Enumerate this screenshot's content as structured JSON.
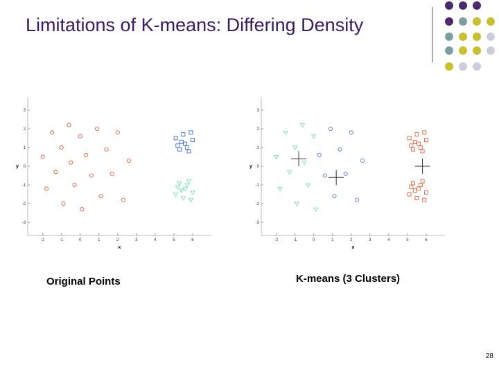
{
  "title": "Limitations of K-means: Differing Density",
  "chart_data": [
    {
      "type": "scatter",
      "x_label": "x",
      "y_label": "y",
      "xlim": [
        -2.8,
        7
      ],
      "ylim": [
        -3.7,
        3.7
      ],
      "xticks": [
        -2,
        -1,
        0,
        1,
        2,
        3,
        4,
        5,
        6
      ],
      "yticks": [
        -3,
        -2,
        -1,
        0,
        1,
        2,
        3
      ],
      "series": [
        {
          "color": "#e0603a",
          "marker": "circle",
          "x": [
            -2,
            -1.8,
            -1.5,
            -1.3,
            -1,
            -0.9,
            -0.6,
            -0.5,
            -0.3,
            0,
            0.1,
            0.3,
            0.6,
            0.9,
            1.1,
            1.4,
            1.7,
            2,
            2.3,
            2.6
          ],
          "values": [
            0.5,
            -1.2,
            1.8,
            -0.3,
            1,
            -2,
            2.2,
            0.2,
            -1,
            1.6,
            -2.3,
            0.6,
            -0.5,
            2,
            -1.6,
            0.9,
            -0.4,
            1.8,
            -1.8,
            0.3
          ]
        },
        {
          "color": "#3a6ad0",
          "marker": "square",
          "x": [
            5.1,
            5.3,
            5.5,
            5.6,
            5.8,
            6,
            5.4,
            5.9,
            5.2,
            5.7
          ],
          "values": [
            1.5,
            0.9,
            1.7,
            1.2,
            0.8,
            1.4,
            1.3,
            1.8,
            1.1,
            1.0
          ]
        },
        {
          "color": "#7ee0b0",
          "marker": "triangle",
          "x": [
            5.1,
            5.3,
            5.5,
            5.6,
            5.8,
            6,
            5.4,
            5.9,
            5.2,
            5.7
          ],
          "values": [
            -1.5,
            -0.9,
            -1.7,
            -1.2,
            -0.8,
            -1.4,
            -1.3,
            -1.8,
            -1.1,
            -1.0
          ]
        }
      ]
    },
    {
      "type": "scatter",
      "x_label": "x",
      "y_label": "y",
      "xlim": [
        -2.8,
        7
      ],
      "ylim": [
        -3.7,
        3.7
      ],
      "xticks": [
        -2,
        -1,
        0,
        1,
        2,
        3,
        4,
        5,
        6
      ],
      "yticks": [
        -3,
        -2,
        -1,
        0,
        1,
        2,
        3
      ],
      "series": [
        {
          "color": "#7ee0b0",
          "marker": "triangle",
          "x": [
            -2,
            -1.8,
            -1.5,
            -1.3,
            -1,
            -0.9,
            -0.6,
            -0.5,
            -0.3,
            0,
            0.1
          ],
          "values": [
            0.5,
            -1.2,
            1.8,
            -0.3,
            1,
            -2,
            2.2,
            0.2,
            -1,
            1.6,
            -2.3
          ]
        },
        {
          "color": "#5a7ad8",
          "marker": "circle",
          "x": [
            0.3,
            0.6,
            0.9,
            1.1,
            1.4,
            1.7,
            2,
            2.3,
            2.6
          ],
          "values": [
            0.6,
            -0.5,
            2,
            -1.6,
            0.9,
            -0.4,
            1.8,
            -1.8,
            0.3
          ]
        },
        {
          "color": "#e0603a",
          "marker": "square",
          "x": [
            5.1,
            5.3,
            5.5,
            5.6,
            5.8,
            6,
            5.4,
            5.9,
            5.2,
            5.7,
            5.1,
            5.3,
            5.5,
            5.6,
            5.8,
            6,
            5.4,
            5.9,
            5.2,
            5.7
          ],
          "values": [
            1.5,
            0.9,
            1.7,
            1.2,
            0.8,
            1.4,
            1.3,
            1.8,
            1.1,
            1.0,
            -1.5,
            -0.9,
            -1.7,
            -1.2,
            -0.8,
            -1.4,
            -1.3,
            -1.8,
            -1.1,
            -1.0
          ]
        },
        {
          "color": "#333333",
          "marker": "plus",
          "x": [
            -0.8,
            1.2,
            5.8
          ],
          "values": [
            0.4,
            -0.6,
            0
          ]
        }
      ]
    }
  ],
  "captions": [
    "Original Points",
    "K-means (3 Clusters)"
  ],
  "page_number": "28"
}
